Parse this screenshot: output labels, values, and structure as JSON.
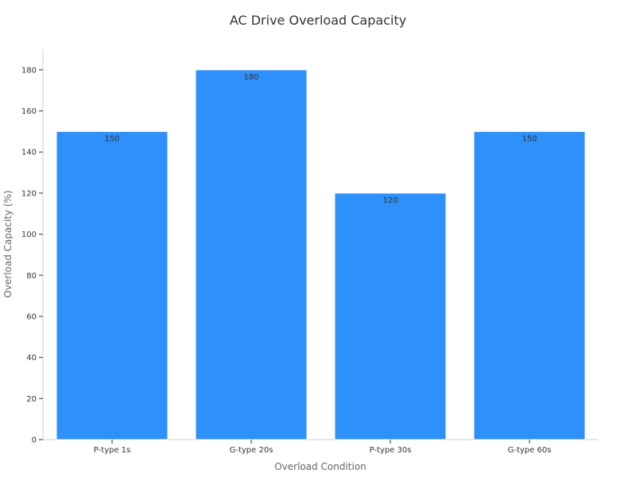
{
  "chart_data": {
    "type": "bar",
    "title": "AC Drive Overload Capacity",
    "xlabel": "Overload Condition",
    "ylabel": "Overload Capacity (%)",
    "categories": [
      "P-type 1s",
      "G-type 20s",
      "P-type 30s",
      "G-type 60s"
    ],
    "values": [
      150,
      180,
      120,
      150
    ],
    "ylim": [
      0,
      190
    ],
    "yticks": [
      0,
      20,
      40,
      60,
      80,
      100,
      120,
      140,
      160,
      180
    ],
    "grid": false,
    "legend": "none",
    "bar_color": "#2e90fa"
  }
}
